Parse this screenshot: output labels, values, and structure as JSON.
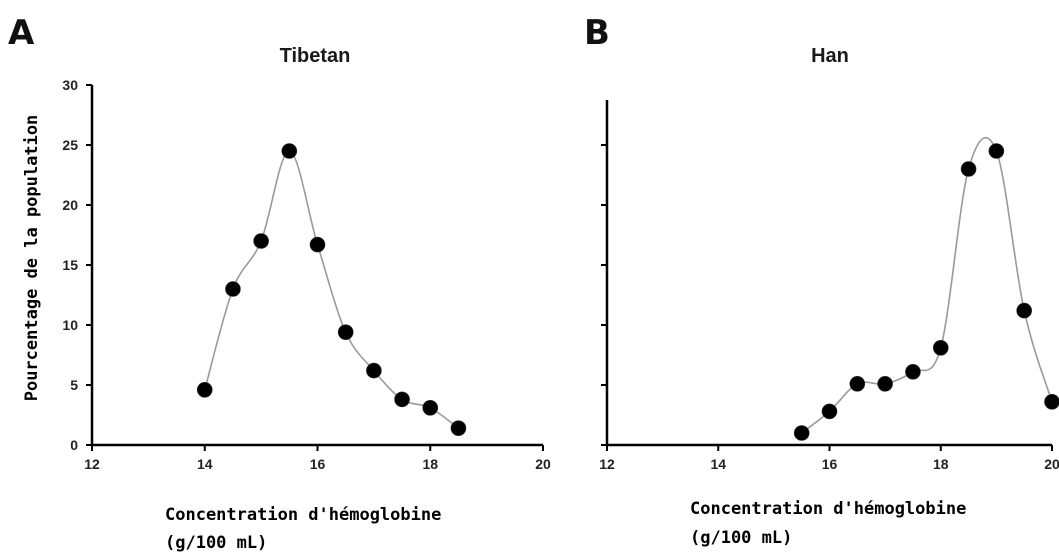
{
  "chart_data": [
    {
      "type": "line",
      "panel_label": "A",
      "title": "Tibetan",
      "ylabel": "Pourcentage de la population",
      "xlabel_line1": "Concentration d'hémoglobine",
      "xlabel_line2": "(g/100 mL)",
      "xlim": [
        12,
        20
      ],
      "ylim": [
        0,
        30
      ],
      "x_ticks": [
        "12",
        "14",
        "16",
        "18",
        "20"
      ],
      "y_ticks": [
        "0",
        "5",
        "10",
        "15",
        "20",
        "25",
        "30"
      ],
      "x": [
        14,
        14.5,
        15,
        15.5,
        16,
        16.5,
        17,
        17.5,
        18,
        18.5
      ],
      "y": [
        4.6,
        13,
        17,
        24.5,
        16.7,
        9.4,
        6.2,
        3.8,
        3.1,
        1.4
      ]
    },
    {
      "type": "line",
      "panel_label": "B",
      "title": "Han",
      "xlabel_line1": "Concentration d'hémoglobine",
      "xlabel_line2": "(g/100 mL)",
      "xlim": [
        12,
        20
      ],
      "ylim": [
        0,
        30
      ],
      "x_ticks": [
        "12",
        "14",
        "16",
        "18",
        "20"
      ],
      "x": [
        15.5,
        16,
        16.5,
        17,
        17.5,
        18,
        18.5,
        19,
        19.5,
        20
      ],
      "y": [
        1,
        2.8,
        5.1,
        5.1,
        6.1,
        8.1,
        23,
        24.5,
        11.2,
        3.6
      ]
    }
  ]
}
